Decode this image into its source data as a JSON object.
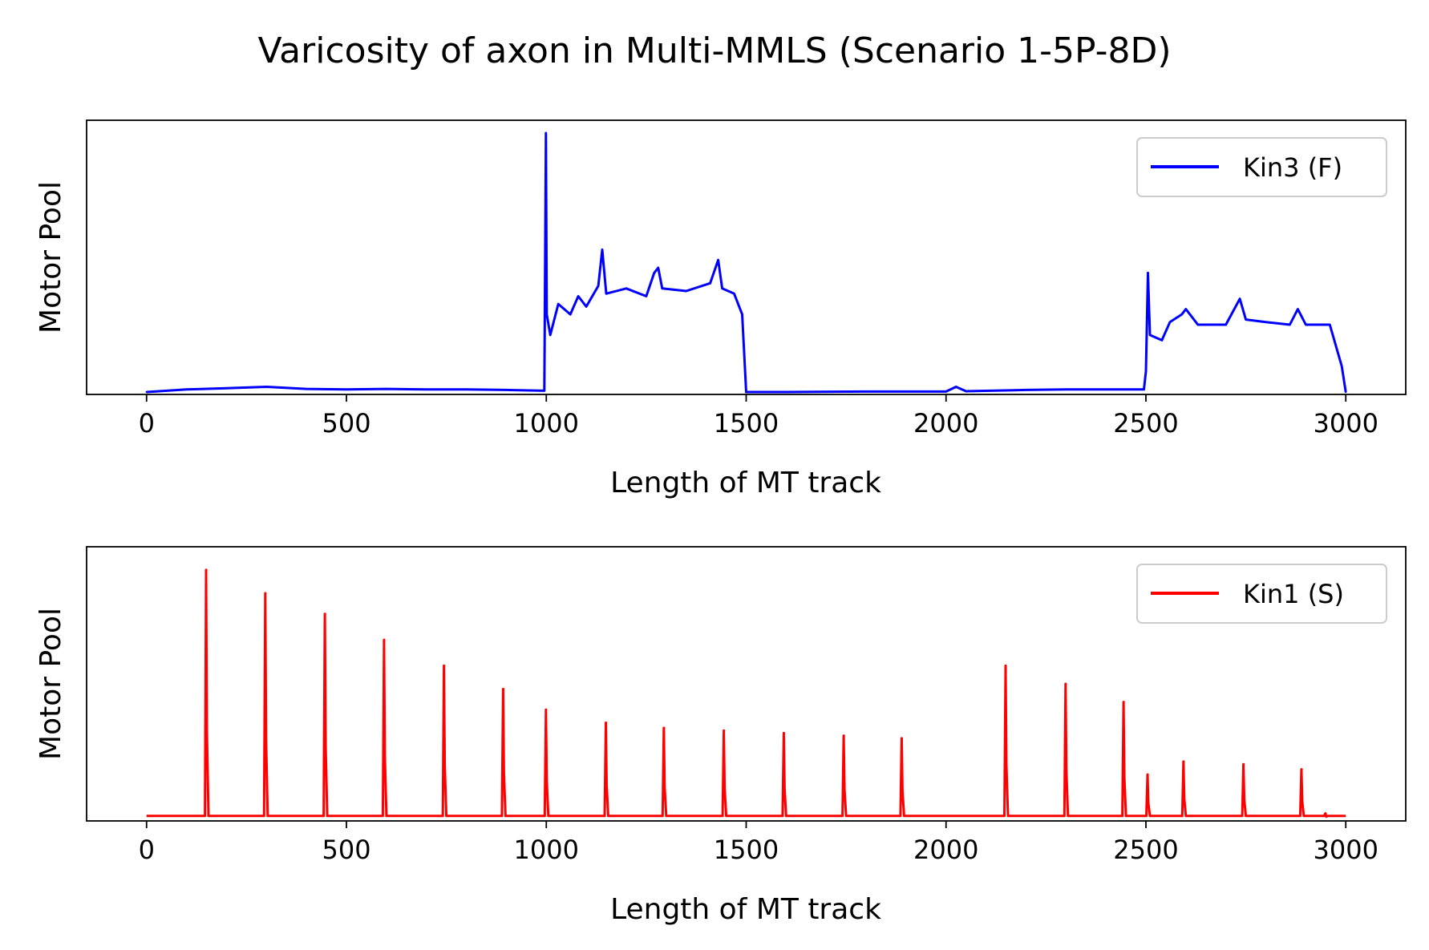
{
  "title": "Varicosity of axon in Multi-MMLS (Scenario 1-5P-8D)",
  "chart_data": [
    {
      "type": "line",
      "xlabel": "Length of MT track",
      "ylabel": "Motor Pool",
      "xlim": [
        -150,
        3150
      ],
      "ylim": [
        0,
        1
      ],
      "x_ticks": [
        0,
        500,
        1000,
        1500,
        2000,
        2500,
        3000
      ],
      "x_tick_labels": [
        "0",
        "500",
        "1000",
        "1500",
        "2000",
        "2500",
        "3000"
      ],
      "y_tick_labels_shown": false,
      "grid": false,
      "legend_position": "upper right",
      "series": [
        {
          "name": "Kin3 (F)",
          "color": "#0000ff",
          "points": [
            [
              0,
              0.0
            ],
            [
              100,
              0.01
            ],
            [
              200,
              0.015
            ],
            [
              300,
              0.02
            ],
            [
              400,
              0.012
            ],
            [
              500,
              0.01
            ],
            [
              600,
              0.012
            ],
            [
              700,
              0.01
            ],
            [
              800,
              0.01
            ],
            [
              900,
              0.008
            ],
            [
              995,
              0.005
            ],
            [
              999,
              1.0
            ],
            [
              1001,
              0.3
            ],
            [
              1010,
              0.22
            ],
            [
              1030,
              0.34
            ],
            [
              1060,
              0.3
            ],
            [
              1080,
              0.37
            ],
            [
              1100,
              0.33
            ],
            [
              1130,
              0.41
            ],
            [
              1140,
              0.55
            ],
            [
              1150,
              0.38
            ],
            [
              1200,
              0.4
            ],
            [
              1250,
              0.37
            ],
            [
              1270,
              0.46
            ],
            [
              1280,
              0.48
            ],
            [
              1290,
              0.4
            ],
            [
              1350,
              0.39
            ],
            [
              1410,
              0.42
            ],
            [
              1430,
              0.51
            ],
            [
              1440,
              0.4
            ],
            [
              1470,
              0.38
            ],
            [
              1490,
              0.3
            ],
            [
              1500,
              0.0
            ],
            [
              1600,
              0.0
            ],
            [
              1800,
              0.002
            ],
            [
              2000,
              0.002
            ],
            [
              2025,
              0.02
            ],
            [
              2050,
              0.003
            ],
            [
              2200,
              0.008
            ],
            [
              2300,
              0.01
            ],
            [
              2400,
              0.01
            ],
            [
              2495,
              0.01
            ],
            [
              2500,
              0.08
            ],
            [
              2505,
              0.46
            ],
            [
              2510,
              0.22
            ],
            [
              2540,
              0.2
            ],
            [
              2560,
              0.27
            ],
            [
              2590,
              0.3
            ],
            [
              2600,
              0.32
            ],
            [
              2630,
              0.26
            ],
            [
              2700,
              0.26
            ],
            [
              2735,
              0.36
            ],
            [
              2750,
              0.28
            ],
            [
              2800,
              0.27
            ],
            [
              2860,
              0.26
            ],
            [
              2880,
              0.32
            ],
            [
              2900,
              0.26
            ],
            [
              2960,
              0.26
            ],
            [
              2990,
              0.1
            ],
            [
              3000,
              0.0
            ]
          ]
        }
      ]
    },
    {
      "type": "line",
      "xlabel": "Length of MT track",
      "ylabel": "Motor Pool",
      "xlim": [
        -150,
        3150
      ],
      "ylim": [
        0,
        1
      ],
      "x_ticks": [
        0,
        500,
        1000,
        1500,
        2000,
        2500,
        3000
      ],
      "x_tick_labels": [
        "0",
        "500",
        "1000",
        "1500",
        "2000",
        "2500",
        "3000"
      ],
      "y_tick_labels_shown": false,
      "grid": false,
      "legend_position": "upper right",
      "baseline": 0.01,
      "series": [
        {
          "name": "Kin1 (S)",
          "color": "#ff0000",
          "peaks": [
            [
              150,
              0.96
            ],
            [
              298,
              0.87
            ],
            [
              447,
              0.79
            ],
            [
              595,
              0.69
            ],
            [
              745,
              0.59
            ],
            [
              893,
              0.5
            ],
            [
              1000,
              0.42
            ],
            [
              1150,
              0.37
            ],
            [
              1295,
              0.35
            ],
            [
              1445,
              0.34
            ],
            [
              1595,
              0.33
            ],
            [
              1745,
              0.32
            ],
            [
              1890,
              0.31
            ],
            [
              2150,
              0.59
            ],
            [
              2300,
              0.52
            ],
            [
              2445,
              0.45
            ],
            [
              2505,
              0.17
            ],
            [
              2595,
              0.22
            ],
            [
              2745,
              0.21
            ],
            [
              2890,
              0.19
            ],
            [
              2950,
              0.02
            ]
          ]
        }
      ]
    }
  ]
}
